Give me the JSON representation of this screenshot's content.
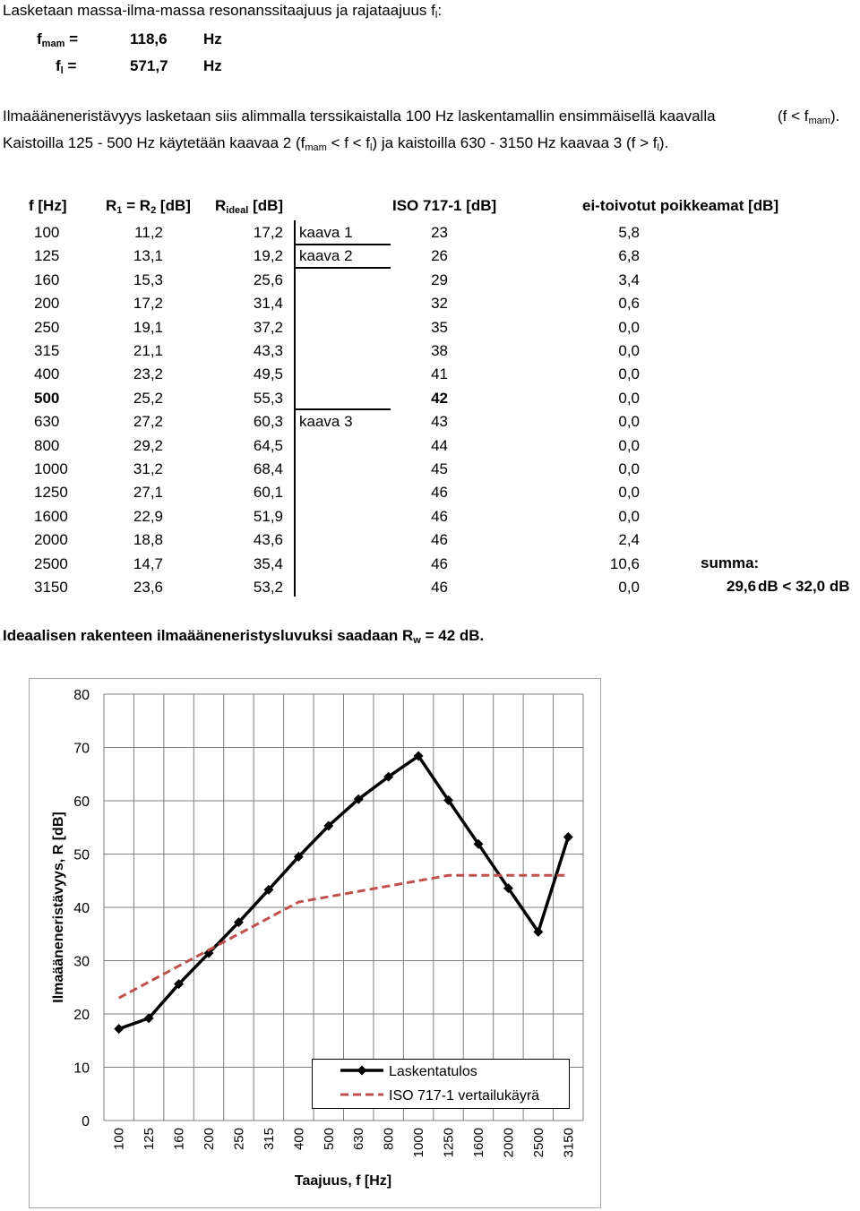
{
  "intro": {
    "heading": "Lasketaan massa-ilma-massa resonanssitaajuus ja rajataajuus f",
    "heading_sub": "l",
    "heading_tail": ":",
    "fmam_label": "f",
    "fmam_sub": "mam",
    "fmam_eq": "=",
    "fmam_value": "118,6",
    "fmam_unit": "Hz",
    "fl_label": "f",
    "fl_sub": "l",
    "fl_eq": "=",
    "fl_value": "571,7",
    "fl_unit": "Hz"
  },
  "paragraph": {
    "line1": "Ilmaääneneristävyys lasketaan siis alimmalla terssikaistalla 100 Hz laskentamallin ensimmäisellä kaavalla",
    "line1_tail_a": "(f < f",
    "line1_tail_sub": "mam",
    "line1_tail_b": ").",
    "line2_a": "Kaistoilla 125 - 500 Hz käytetään kaavaa 2 (f",
    "line2_sub1": "mam",
    "line2_b": " < f < f",
    "line2_sub2": "l",
    "line2_c": ") ja kaistoilla 630 - 3150 Hz kaavaa 3 (f > f",
    "line2_sub3": "l",
    "line2_d": ")."
  },
  "table": {
    "headers": {
      "f": "f [Hz]",
      "r_a": "R",
      "r_sub1": "1",
      "r_b": " = R",
      "r_sub2": "2",
      "r_c": " [dB]",
      "ri_a": "R",
      "ri_sub": "ideal",
      "ri_b": " [dB]",
      "iso": "ISO 717-1 [dB]",
      "dev": "ei-toivotut poikkeamat [dB]"
    },
    "rows": [
      {
        "f": "100",
        "r": "11,2",
        "ri": "17,2",
        "kaava": "kaava 1",
        "iso": "23",
        "dev": "5,8"
      },
      {
        "f": "125",
        "r": "13,1",
        "ri": "19,2",
        "kaava": "kaava 2",
        "iso": "26",
        "dev": "6,8"
      },
      {
        "f": "160",
        "r": "15,3",
        "ri": "25,6",
        "kaava": "",
        "iso": "29",
        "dev": "3,4"
      },
      {
        "f": "200",
        "r": "17,2",
        "ri": "31,4",
        "kaava": "",
        "iso": "32",
        "dev": "0,6"
      },
      {
        "f": "250",
        "r": "19,1",
        "ri": "37,2",
        "kaava": "",
        "iso": "35",
        "dev": "0,0"
      },
      {
        "f": "315",
        "r": "21,1",
        "ri": "43,3",
        "kaava": "",
        "iso": "38",
        "dev": "0,0"
      },
      {
        "f": "400",
        "r": "23,2",
        "ri": "49,5",
        "kaava": "",
        "iso": "41",
        "dev": "0,0"
      },
      {
        "f": "500",
        "r": "25,2",
        "ri": "55,3",
        "kaava": "",
        "iso": "42",
        "dev": "0,0"
      },
      {
        "f": "630",
        "r": "27,2",
        "ri": "60,3",
        "kaava": "kaava 3",
        "iso": "43",
        "dev": "0,0"
      },
      {
        "f": "800",
        "r": "29,2",
        "ri": "64,5",
        "kaava": "",
        "iso": "44",
        "dev": "0,0"
      },
      {
        "f": "1000",
        "r": "31,2",
        "ri": "68,4",
        "kaava": "",
        "iso": "45",
        "dev": "0,0"
      },
      {
        "f": "1250",
        "r": "27,1",
        "ri": "60,1",
        "kaava": "",
        "iso": "46",
        "dev": "0,0"
      },
      {
        "f": "1600",
        "r": "22,9",
        "ri": "51,9",
        "kaava": "",
        "iso": "46",
        "dev": "0,0"
      },
      {
        "f": "2000",
        "r": "18,8",
        "ri": "43,6",
        "kaava": "",
        "iso": "46",
        "dev": "2,4"
      },
      {
        "f": "2500",
        "r": "14,7",
        "ri": "35,4",
        "kaava": "",
        "iso": "46",
        "dev": "10,6"
      },
      {
        "f": "3150",
        "r": "23,6",
        "ri": "53,2",
        "kaava": "",
        "iso": "46",
        "dev": "0,0"
      }
    ],
    "summa_label": "summa:",
    "summa_value": "29,6",
    "summa_compare": "dB < 32,0 dB"
  },
  "conclusion": {
    "text_a": "Ideaalisen rakenteen ilmaääneneristysluvuksi saadaan R",
    "text_sub": "w",
    "text_b": " = 42 dB."
  },
  "chart_data": {
    "type": "line",
    "categories": [
      "100",
      "125",
      "160",
      "200",
      "250",
      "315",
      "400",
      "500",
      "630",
      "800",
      "1000",
      "1250",
      "1600",
      "2000",
      "2500",
      "3150"
    ],
    "series": [
      {
        "name": "Laskentatulos",
        "values": [
          17.2,
          19.2,
          25.6,
          31.4,
          37.2,
          43.3,
          49.5,
          55.3,
          60.3,
          64.5,
          68.4,
          60.1,
          51.9,
          43.6,
          35.4,
          53.2
        ],
        "color": "#000000",
        "style": "solid-diamond"
      },
      {
        "name": "ISO 717-1 vertailukäyrä",
        "values": [
          23,
          26,
          29,
          32,
          35,
          38,
          41,
          42,
          43,
          44,
          45,
          46,
          46,
          46,
          46,
          46
        ],
        "color": "#c0504d",
        "style": "dashed"
      }
    ],
    "xlabel": "Taajuus, f [Hz]",
    "ylabel": "Ilmaääneneristävyys, R [dB]",
    "ylim": [
      0,
      80
    ],
    "yticks": [
      "0",
      "10",
      "20",
      "30",
      "40",
      "50",
      "60",
      "70",
      "80"
    ],
    "grid": true,
    "legend": "bottom-right"
  }
}
